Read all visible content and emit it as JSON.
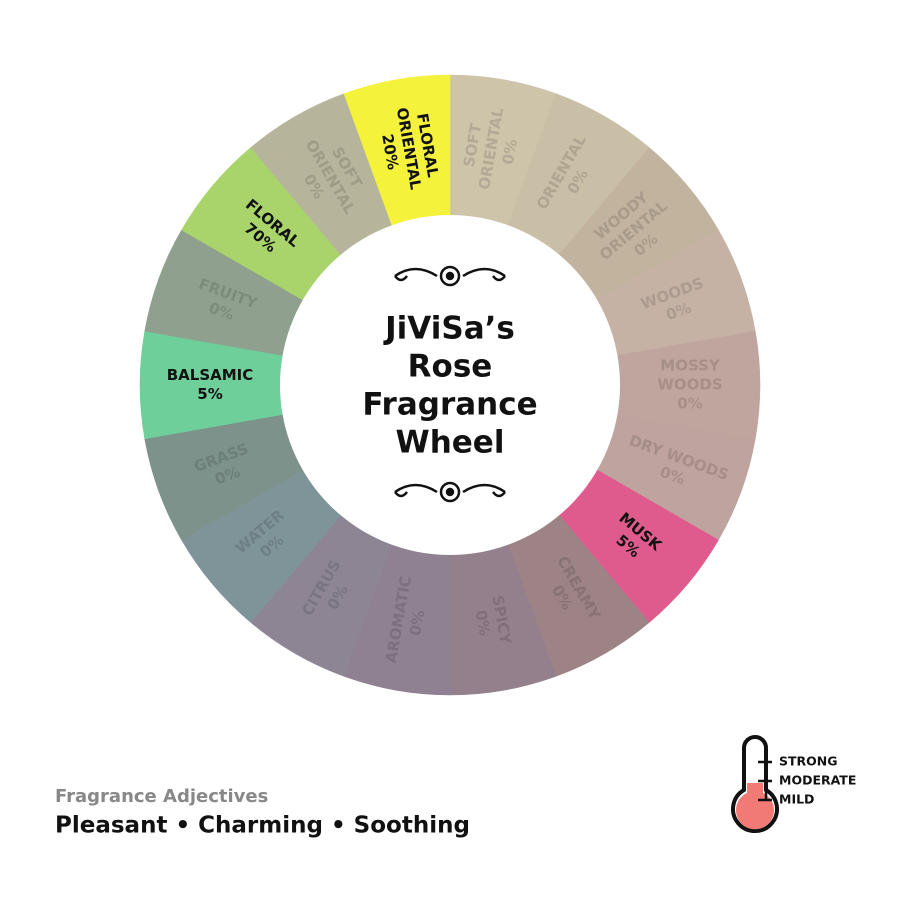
{
  "wheel": {
    "title": [
      "JiViSa’s",
      "Rose",
      "Fragrance",
      "Wheel"
    ],
    "segments": [
      {
        "lines": [
          "SOFT",
          "ORIENTAL"
        ],
        "value": "0%",
        "color": "#cdc4aa",
        "active": false
      },
      {
        "lines": [
          "ORIENTAL"
        ],
        "value": "0%",
        "color": "#c9bea6",
        "active": false
      },
      {
        "lines": [
          "WOODY",
          "ORIENTAL"
        ],
        "value": "0%",
        "color": "#c2b39f",
        "active": false
      },
      {
        "lines": [
          "WOODS"
        ],
        "value": "0%",
        "color": "#c5b2a5",
        "active": false
      },
      {
        "lines": [
          "MOSSY",
          "WOODS"
        ],
        "value": "0%",
        "color": "#c0a59e",
        "active": false
      },
      {
        "lines": [
          "DRY WOODS"
        ],
        "value": "0%",
        "color": "#bea39f",
        "active": false
      },
      {
        "lines": [
          "MUSK"
        ],
        "value": "5%",
        "color": "#e05b8d",
        "active": true
      },
      {
        "lines": [
          "CREAMY"
        ],
        "value": "0%",
        "color": "#9d8385",
        "active": false
      },
      {
        "lines": [
          "SPICY"
        ],
        "value": "0%",
        "color": "#94808d",
        "active": false
      },
      {
        "lines": [
          "AROMATIC"
        ],
        "value": "0%",
        "color": "#8f8191",
        "active": false
      },
      {
        "lines": [
          "CITRUS"
        ],
        "value": "0%",
        "color": "#8d8594",
        "active": false
      },
      {
        "lines": [
          "WATER"
        ],
        "value": "0%",
        "color": "#7e9499",
        "active": false
      },
      {
        "lines": [
          "GRASS"
        ],
        "value": "0%",
        "color": "#7c928a",
        "active": false
      },
      {
        "lines": [
          "BALSAMIC"
        ],
        "value": "5%",
        "color": "#6fcf9b",
        "active": true
      },
      {
        "lines": [
          "FRUITY"
        ],
        "value": "0%",
        "color": "#8fa08e",
        "active": false
      },
      {
        "lines": [
          "FLORAL"
        ],
        "value": "70%",
        "color": "#a8d46b",
        "active": true
      },
      {
        "lines": [
          "SOFT",
          "ORIENTAL"
        ],
        "value": "0%",
        "color": "#b6b49a",
        "active": false
      },
      {
        "lines": [
          "FLORAL",
          "ORIENTAL"
        ],
        "value": "20%",
        "color": "#f5f23b",
        "active": true
      }
    ]
  },
  "adjectives": {
    "heading": "Fragrance Adjectives",
    "text": "Pleasant • Charming • Soothing"
  },
  "intensity": {
    "levels": [
      "STRONG",
      "MODERATE",
      "MILD"
    ]
  }
}
